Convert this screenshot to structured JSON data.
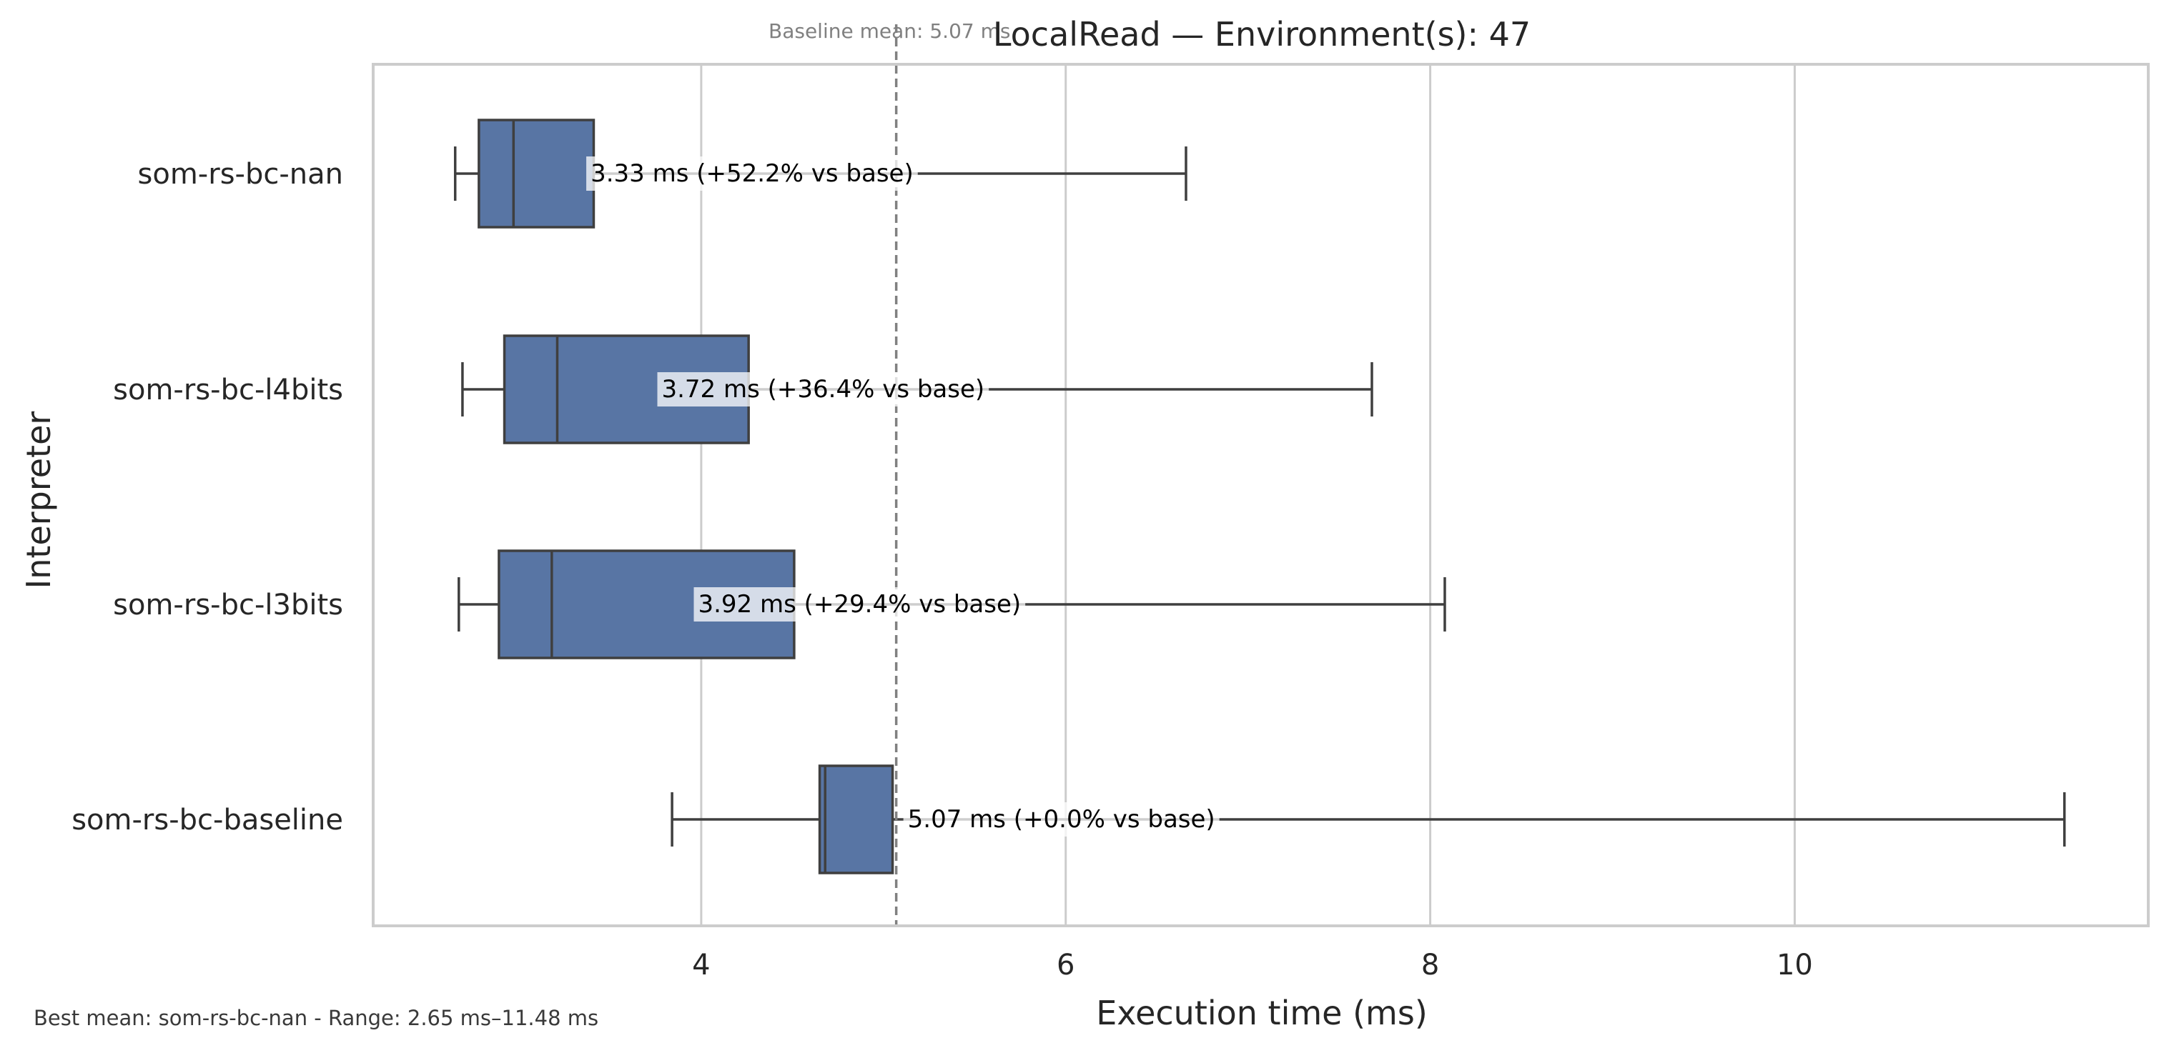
{
  "chart_data": {
    "type": "box",
    "title": "LocalRead — Environment(s): 47",
    "xlabel": "Execution time (ms)",
    "ylabel": "Interpreter",
    "xlim": [
      2.2,
      11.94
    ],
    "xticks": [
      4,
      6,
      8,
      10
    ],
    "grid": "vertical",
    "baseline": {
      "value": 5.07,
      "label": "Baseline mean: 5.07 ms"
    },
    "series": [
      {
        "name": "som-rs-bc-nan",
        "whisker_low": 2.65,
        "q1": 2.78,
        "median": 2.97,
        "q3": 3.41,
        "whisker_high": 6.66,
        "annotation": "3.33 ms  (+52.2% vs base)",
        "annotation_at": 3.33
      },
      {
        "name": "som-rs-bc-l4bits",
        "whisker_low": 2.69,
        "q1": 2.92,
        "median": 3.21,
        "q3": 4.26,
        "whisker_high": 7.68,
        "annotation": "3.72 ms  (+36.4% vs base)",
        "annotation_at": 3.72
      },
      {
        "name": "som-rs-bc-l3bits",
        "whisker_low": 2.67,
        "q1": 2.89,
        "median": 3.18,
        "q3": 4.51,
        "whisker_high": 8.08,
        "annotation": "3.92 ms  (+29.4% vs base)",
        "annotation_at": 3.92
      },
      {
        "name": "som-rs-bc-baseline",
        "whisker_low": 3.84,
        "q1": 4.65,
        "median": 4.68,
        "q3": 5.05,
        "whisker_high": 11.48,
        "annotation": "5.07 ms  (+0.0% vs base)",
        "annotation_at": 5.07
      }
    ],
    "colors": {
      "box": "#5875a4",
      "box_edge": "#3f3f3f",
      "whisker": "#3f3f3f",
      "grid": "#cccccc",
      "frame": "#cccccc",
      "baseline": "#808080"
    }
  },
  "footer": {
    "text": "Best mean: som-rs-bc-nan - Range: 2.65 ms–11.48 ms"
  }
}
